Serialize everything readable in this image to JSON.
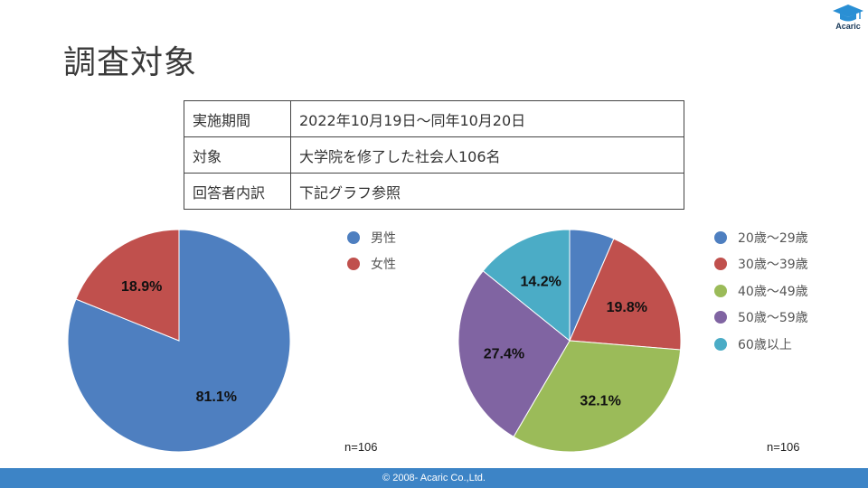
{
  "page": {
    "title": "調査対象"
  },
  "logo": {
    "text": "Acaric",
    "icon": "graduation-cap-icon"
  },
  "info_table": [
    {
      "key": "実施期間",
      "value": "2022年10月19日～同年10月20日"
    },
    {
      "key": "対象",
      "value": "大学院を修了した社会人106名"
    },
    {
      "key": "回答者内訳",
      "value": "下記グラフ参照"
    }
  ],
  "chart_data": [
    {
      "type": "pie",
      "title": "",
      "categories": [
        "男性",
        "女性"
      ],
      "values": [
        81.1,
        18.9
      ],
      "labels": [
        "81.1%",
        "18.9%"
      ],
      "colors": [
        "#4e7fc0",
        "#c0504d"
      ],
      "legend": "right",
      "note": "n=106"
    },
    {
      "type": "pie",
      "title": "",
      "categories": [
        "20歳～29歳",
        "30歳～39歳",
        "40歳～49歳",
        "50歳～59歳",
        "60歳以上"
      ],
      "values": [
        6.5,
        19.8,
        32.1,
        27.4,
        14.2
      ],
      "labels": [
        "",
        "19.8%",
        "32.1%",
        "27.4%",
        "14.2%"
      ],
      "colors": [
        "#4e7fc0",
        "#c0504d",
        "#9bbb59",
        "#8064a2",
        "#4bacc6"
      ],
      "legend": "right",
      "note": "n=106"
    }
  ],
  "footer": {
    "text": "© 2008- Acaric Co.,Ltd."
  }
}
